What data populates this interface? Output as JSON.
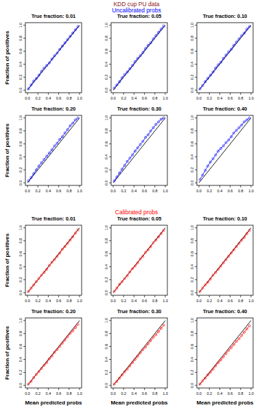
{
  "figure": {
    "title": "KDD cup PU data",
    "title_color": "#8b1a1a",
    "sections": [
      {
        "title": "Uncalibrated probs",
        "color": "#0000ff"
      },
      {
        "title": "Calibrated probs",
        "color": "#ff0000"
      }
    ]
  },
  "chart_data": [
    {
      "type": "line",
      "title": "True fraction: 0.01",
      "ylabel": "Fraction of positives",
      "xlim": [
        -0.04,
        1.04
      ],
      "ylim": [
        -0.04,
        1.04
      ],
      "xticks": [
        {
          "value": 0,
          "label": "0.0"
        },
        0.2,
        0.4,
        0.6,
        0.8,
        {
          "value": 1,
          "label": "1.0"
        }
      ],
      "yticks": [
        {
          "value": 0,
          "label": "0.0"
        },
        0.2,
        0.4,
        0.6,
        0.8,
        {
          "value": 1,
          "label": "1.0"
        }
      ],
      "x": [
        0.02,
        0.07,
        0.12,
        0.17,
        0.22,
        0.27,
        0.32,
        0.37,
        0.42,
        0.47,
        0.52,
        0.57,
        0.62,
        0.67,
        0.72,
        0.77,
        0.82,
        0.87,
        0.92,
        0.97
      ],
      "series": [
        {
          "color": "#0000ff",
          "marker": "circle",
          "line_style": "solid",
          "values": [
            0.02,
            0.08,
            0.14,
            0.18,
            0.23,
            0.29,
            0.34,
            0.38,
            0.42,
            0.48,
            0.53,
            0.57,
            0.63,
            0.68,
            0.73,
            0.78,
            0.83,
            0.88,
            0.93,
            0.98
          ]
        }
      ]
    },
    {
      "type": "line",
      "title": "True fraction: 0.05",
      "xlim": [
        -0.04,
        1.04
      ],
      "ylim": [
        -0.04,
        1.04
      ],
      "xticks": [
        {
          "value": 0,
          "label": "0.0"
        },
        0.2,
        0.4,
        0.6,
        0.8,
        {
          "value": 1,
          "label": "1.0"
        }
      ],
      "yticks": [
        {
          "value": 0,
          "label": "0.0"
        },
        0.2,
        0.4,
        0.6,
        0.8,
        {
          "value": 1,
          "label": "1.0"
        }
      ],
      "x": [
        0.02,
        0.07,
        0.12,
        0.17,
        0.22,
        0.27,
        0.32,
        0.37,
        0.42,
        0.47,
        0.52,
        0.57,
        0.62,
        0.67,
        0.72,
        0.77,
        0.82,
        0.87,
        0.92,
        0.97
      ],
      "series": [
        {
          "color": "#0000ff",
          "marker": "circle",
          "line_style": "solid",
          "values": [
            0.03,
            0.08,
            0.13,
            0.19,
            0.24,
            0.28,
            0.33,
            0.38,
            0.44,
            0.49,
            0.53,
            0.58,
            0.64,
            0.69,
            0.73,
            0.79,
            0.84,
            0.89,
            0.94,
            0.99
          ]
        }
      ]
    },
    {
      "type": "line",
      "title": "True fraction: 0.10",
      "xlim": [
        -0.04,
        1.04
      ],
      "ylim": [
        -0.04,
        1.04
      ],
      "xticks": [
        {
          "value": 0,
          "label": "0.0"
        },
        0.2,
        0.4,
        0.6,
        0.8,
        {
          "value": 1,
          "label": "1.0"
        }
      ],
      "yticks": [
        {
          "value": 0,
          "label": "0.0"
        },
        0.2,
        0.4,
        0.6,
        0.8,
        {
          "value": 1,
          "label": "1.0"
        }
      ],
      "x": [
        0.02,
        0.07,
        0.12,
        0.17,
        0.22,
        0.27,
        0.32,
        0.37,
        0.42,
        0.47,
        0.52,
        0.57,
        0.62,
        0.67,
        0.72,
        0.77,
        0.82,
        0.87,
        0.92,
        0.97
      ],
      "series": [
        {
          "color": "#0000ff",
          "marker": "circle",
          "line_style": "solid",
          "values": [
            0.02,
            0.07,
            0.13,
            0.18,
            0.23,
            0.28,
            0.34,
            0.39,
            0.43,
            0.49,
            0.54,
            0.59,
            0.63,
            0.69,
            0.74,
            0.79,
            0.84,
            0.88,
            0.94,
            0.98
          ]
        }
      ]
    },
    {
      "type": "line",
      "title": "True fraction: 0.20",
      "ylabel": "Fraction of positives",
      "xlim": [
        -0.04,
        1.04
      ],
      "ylim": [
        -0.04,
        1.04
      ],
      "xticks": [
        {
          "value": 0,
          "label": "0.0"
        },
        0.2,
        0.4,
        0.6,
        0.8,
        {
          "value": 1,
          "label": "1.0"
        }
      ],
      "yticks": [
        {
          "value": 0,
          "label": "0.0"
        },
        0.2,
        0.4,
        0.6,
        0.8,
        {
          "value": 1,
          "label": "1.0"
        }
      ],
      "x": [
        0.02,
        0.07,
        0.12,
        0.17,
        0.22,
        0.27,
        0.32,
        0.37,
        0.42,
        0.47,
        0.52,
        0.57,
        0.62,
        0.67,
        0.72,
        0.77,
        0.82,
        0.87,
        0.92,
        0.97
      ],
      "series": [
        {
          "color": "#0000ff",
          "marker": "circle",
          "line_style": "solid",
          "values": [
            0.03,
            0.08,
            0.14,
            0.2,
            0.26,
            0.31,
            0.36,
            0.41,
            0.46,
            0.51,
            0.57,
            0.61,
            0.67,
            0.71,
            0.77,
            0.82,
            0.88,
            0.92,
            0.97,
            1.0
          ]
        }
      ]
    },
    {
      "type": "line",
      "title": "True fraction: 0.30",
      "xlim": [
        -0.04,
        1.04
      ],
      "ylim": [
        -0.04,
        1.04
      ],
      "xticks": [
        {
          "value": 0,
          "label": "0.0"
        },
        0.2,
        0.4,
        0.6,
        0.8,
        {
          "value": 1,
          "label": "1.0"
        }
      ],
      "yticks": [
        {
          "value": 0,
          "label": "0.0"
        },
        0.2,
        0.4,
        0.6,
        0.8,
        {
          "value": 1,
          "label": "1.0"
        }
      ],
      "x": [
        0.02,
        0.07,
        0.12,
        0.17,
        0.22,
        0.27,
        0.32,
        0.37,
        0.42,
        0.47,
        0.52,
        0.57,
        0.62,
        0.67,
        0.72,
        0.77,
        0.82,
        0.87,
        0.92,
        0.97
      ],
      "series": [
        {
          "color": "#0000ff",
          "marker": "circle",
          "line_style": "solid",
          "values": [
            0.03,
            0.09,
            0.15,
            0.21,
            0.27,
            0.33,
            0.38,
            0.43,
            0.49,
            0.54,
            0.59,
            0.64,
            0.7,
            0.74,
            0.8,
            0.85,
            0.9,
            0.94,
            0.98,
            1.0
          ]
        }
      ]
    },
    {
      "type": "line",
      "title": "True fraction: 0.40",
      "xlim": [
        -0.04,
        1.04
      ],
      "ylim": [
        -0.04,
        1.04
      ],
      "xticks": [
        {
          "value": 0,
          "label": "0.0"
        },
        0.2,
        0.4,
        0.6,
        0.8,
        {
          "value": 1,
          "label": "1.0"
        }
      ],
      "yticks": [
        {
          "value": 0,
          "label": "0.0"
        },
        0.2,
        0.4,
        0.6,
        0.8,
        {
          "value": 1,
          "label": "1.0"
        }
      ],
      "x": [
        0.02,
        0.07,
        0.12,
        0.17,
        0.22,
        0.27,
        0.32,
        0.37,
        0.42,
        0.47,
        0.52,
        0.57,
        0.62,
        0.67,
        0.72,
        0.77,
        0.82,
        0.87,
        0.92,
        0.97
      ],
      "series": [
        {
          "color": "#0000ff",
          "marker": "circle",
          "line_style": "solid",
          "values": [
            0.05,
            0.12,
            0.19,
            0.26,
            0.32,
            0.37,
            0.43,
            0.49,
            0.53,
            0.57,
            0.62,
            0.66,
            0.71,
            0.77,
            0.81,
            0.85,
            0.89,
            0.94,
            0.97,
            1.0
          ]
        }
      ]
    },
    {
      "type": "line",
      "title": "True fraction: 0.01",
      "ylabel": "Fraction of positives",
      "xlim": [
        -0.04,
        1.04
      ],
      "ylim": [
        -0.04,
        1.04
      ],
      "xticks": [
        {
          "value": 0,
          "label": "0.0"
        },
        0.2,
        0.4,
        0.6,
        0.8,
        {
          "value": 1,
          "label": "1.0"
        }
      ],
      "yticks": [
        {
          "value": 0,
          "label": "0.0"
        },
        0.2,
        0.4,
        0.6,
        0.8,
        {
          "value": 1,
          "label": "1.0"
        }
      ],
      "x": [
        0.02,
        0.07,
        0.12,
        0.17,
        0.22,
        0.27,
        0.32,
        0.37,
        0.42,
        0.47,
        0.52,
        0.57,
        0.62,
        0.67,
        0.72,
        0.77,
        0.82,
        0.87,
        0.92,
        0.97
      ],
      "series": [
        {
          "color": "#ff0000",
          "marker": "circle",
          "line_style": "solid",
          "values": [
            0.02,
            0.07,
            0.12,
            0.17,
            0.22,
            0.27,
            0.31,
            0.36,
            0.42,
            0.47,
            0.51,
            0.56,
            0.61,
            0.67,
            0.71,
            0.76,
            0.81,
            0.86,
            0.92,
            0.97
          ]
        }
      ]
    },
    {
      "type": "line",
      "title": "True fraction: 0.05",
      "xlim": [
        -0.04,
        1.04
      ],
      "ylim": [
        -0.04,
        1.04
      ],
      "xticks": [
        {
          "value": 0,
          "label": "0.0"
        },
        0.2,
        0.4,
        0.6,
        0.8,
        {
          "value": 1,
          "label": "1.0"
        }
      ],
      "yticks": [
        {
          "value": 0,
          "label": "0.0"
        },
        0.2,
        0.4,
        0.6,
        0.8,
        {
          "value": 1,
          "label": "1.0"
        }
      ],
      "x": [
        0.02,
        0.07,
        0.12,
        0.17,
        0.22,
        0.27,
        0.32,
        0.37,
        0.42,
        0.47,
        0.52,
        0.57,
        0.62,
        0.67,
        0.72,
        0.77,
        0.82,
        0.87,
        0.92,
        0.97
      ],
      "series": [
        {
          "color": "#ff0000",
          "marker": "circle",
          "line_style": "solid",
          "values": [
            0.02,
            0.07,
            0.13,
            0.17,
            0.22,
            0.26,
            0.32,
            0.37,
            0.41,
            0.46,
            0.52,
            0.56,
            0.62,
            0.66,
            0.71,
            0.77,
            0.81,
            0.86,
            0.91,
            0.96
          ]
        }
      ]
    },
    {
      "type": "line",
      "title": "True fraction: 0.10",
      "xlim": [
        -0.04,
        1.04
      ],
      "ylim": [
        -0.04,
        1.04
      ],
      "xticks": [
        {
          "value": 0,
          "label": "0.0"
        },
        0.2,
        0.4,
        0.6,
        0.8,
        {
          "value": 1,
          "label": "1.0"
        }
      ],
      "yticks": [
        {
          "value": 0,
          "label": "0.0"
        },
        0.2,
        0.4,
        0.6,
        0.8,
        {
          "value": 1,
          "label": "1.0"
        }
      ],
      "x": [
        0.02,
        0.07,
        0.12,
        0.17,
        0.22,
        0.27,
        0.32,
        0.37,
        0.42,
        0.47,
        0.52,
        0.57,
        0.62,
        0.67,
        0.72,
        0.77,
        0.82,
        0.87,
        0.92,
        0.97
      ],
      "series": [
        {
          "color": "#ff0000",
          "marker": "circle",
          "line_style": "solid",
          "values": [
            0.02,
            0.07,
            0.12,
            0.16,
            0.21,
            0.27,
            0.31,
            0.36,
            0.41,
            0.46,
            0.51,
            0.56,
            0.61,
            0.66,
            0.71,
            0.76,
            0.81,
            0.85,
            0.91,
            0.96
          ]
        }
      ]
    },
    {
      "type": "line",
      "title": "True fraction: 0.20",
      "ylabel": "Fraction of positives",
      "xlabel": "Mean predicted probs",
      "xlim": [
        -0.04,
        1.04
      ],
      "ylim": [
        -0.04,
        1.04
      ],
      "xticks": [
        {
          "value": 0,
          "label": "0.0"
        },
        0.2,
        0.4,
        0.6,
        0.8,
        {
          "value": 1,
          "label": "1.0"
        }
      ],
      "yticks": [
        {
          "value": 0,
          "label": "0.0"
        },
        0.2,
        0.4,
        0.6,
        0.8,
        {
          "value": 1,
          "label": "1.0"
        }
      ],
      "x": [
        0.02,
        0.07,
        0.12,
        0.17,
        0.22,
        0.27,
        0.32,
        0.37,
        0.42,
        0.47,
        0.52,
        0.57,
        0.62,
        0.67,
        0.72,
        0.77,
        0.82,
        0.87,
        0.92,
        0.97
      ],
      "series": [
        {
          "color": "#ff0000",
          "marker": "circle",
          "line_style": "solid",
          "values": [
            0.02,
            0.06,
            0.12,
            0.17,
            0.21,
            0.26,
            0.31,
            0.35,
            0.41,
            0.45,
            0.51,
            0.55,
            0.6,
            0.65,
            0.7,
            0.75,
            0.8,
            0.84,
            0.89,
            0.94
          ]
        }
      ]
    },
    {
      "type": "line",
      "title": "True fraction: 0.30",
      "xlabel": "Mean predicted probs",
      "xlim": [
        -0.04,
        1.04
      ],
      "ylim": [
        -0.04,
        1.04
      ],
      "xticks": [
        {
          "value": 0,
          "label": "0.0"
        },
        0.2,
        0.4,
        0.6,
        0.8,
        {
          "value": 1,
          "label": "1.0"
        }
      ],
      "yticks": [
        {
          "value": 0,
          "label": "0.0"
        },
        0.2,
        0.4,
        0.6,
        0.8,
        {
          "value": 1,
          "label": "1.0"
        }
      ],
      "x": [
        0.02,
        0.07,
        0.12,
        0.17,
        0.22,
        0.27,
        0.32,
        0.37,
        0.42,
        0.47,
        0.52,
        0.57,
        0.62,
        0.67,
        0.72,
        0.77,
        0.82,
        0.87,
        0.92,
        0.97
      ],
      "series": [
        {
          "color": "#ff0000",
          "marker": "circle",
          "line_style": "solid",
          "values": [
            0.02,
            0.06,
            0.11,
            0.16,
            0.21,
            0.25,
            0.3,
            0.35,
            0.4,
            0.45,
            0.5,
            0.55,
            0.59,
            0.64,
            0.69,
            0.74,
            0.78,
            0.83,
            0.88,
            0.93
          ]
        }
      ]
    },
    {
      "type": "line",
      "title": "True fraction: 0.40",
      "xlabel": "Mean predicted probs",
      "xlim": [
        -0.04,
        1.04
      ],
      "ylim": [
        -0.04,
        1.04
      ],
      "xticks": [
        {
          "value": 0,
          "label": "0.0"
        },
        0.2,
        0.4,
        0.6,
        0.8,
        {
          "value": 1,
          "label": "1.0"
        }
      ],
      "yticks": [
        {
          "value": 0,
          "label": "0.0"
        },
        0.2,
        0.4,
        0.6,
        0.8,
        {
          "value": 1,
          "label": "1.0"
        }
      ],
      "x": [
        0.02,
        0.07,
        0.12,
        0.17,
        0.22,
        0.27,
        0.32,
        0.37,
        0.42,
        0.47,
        0.52,
        0.57,
        0.62,
        0.67,
        0.72,
        0.77,
        0.82,
        0.87,
        0.92,
        0.97
      ],
      "series": [
        {
          "color": "#ff0000",
          "marker": "circle",
          "line_style": "solid",
          "values": [
            0.02,
            0.07,
            0.11,
            0.16,
            0.2,
            0.25,
            0.3,
            0.35,
            0.39,
            0.44,
            0.49,
            0.54,
            0.58,
            0.63,
            0.68,
            0.72,
            0.77,
            0.82,
            0.87,
            0.92
          ]
        }
      ]
    }
  ]
}
